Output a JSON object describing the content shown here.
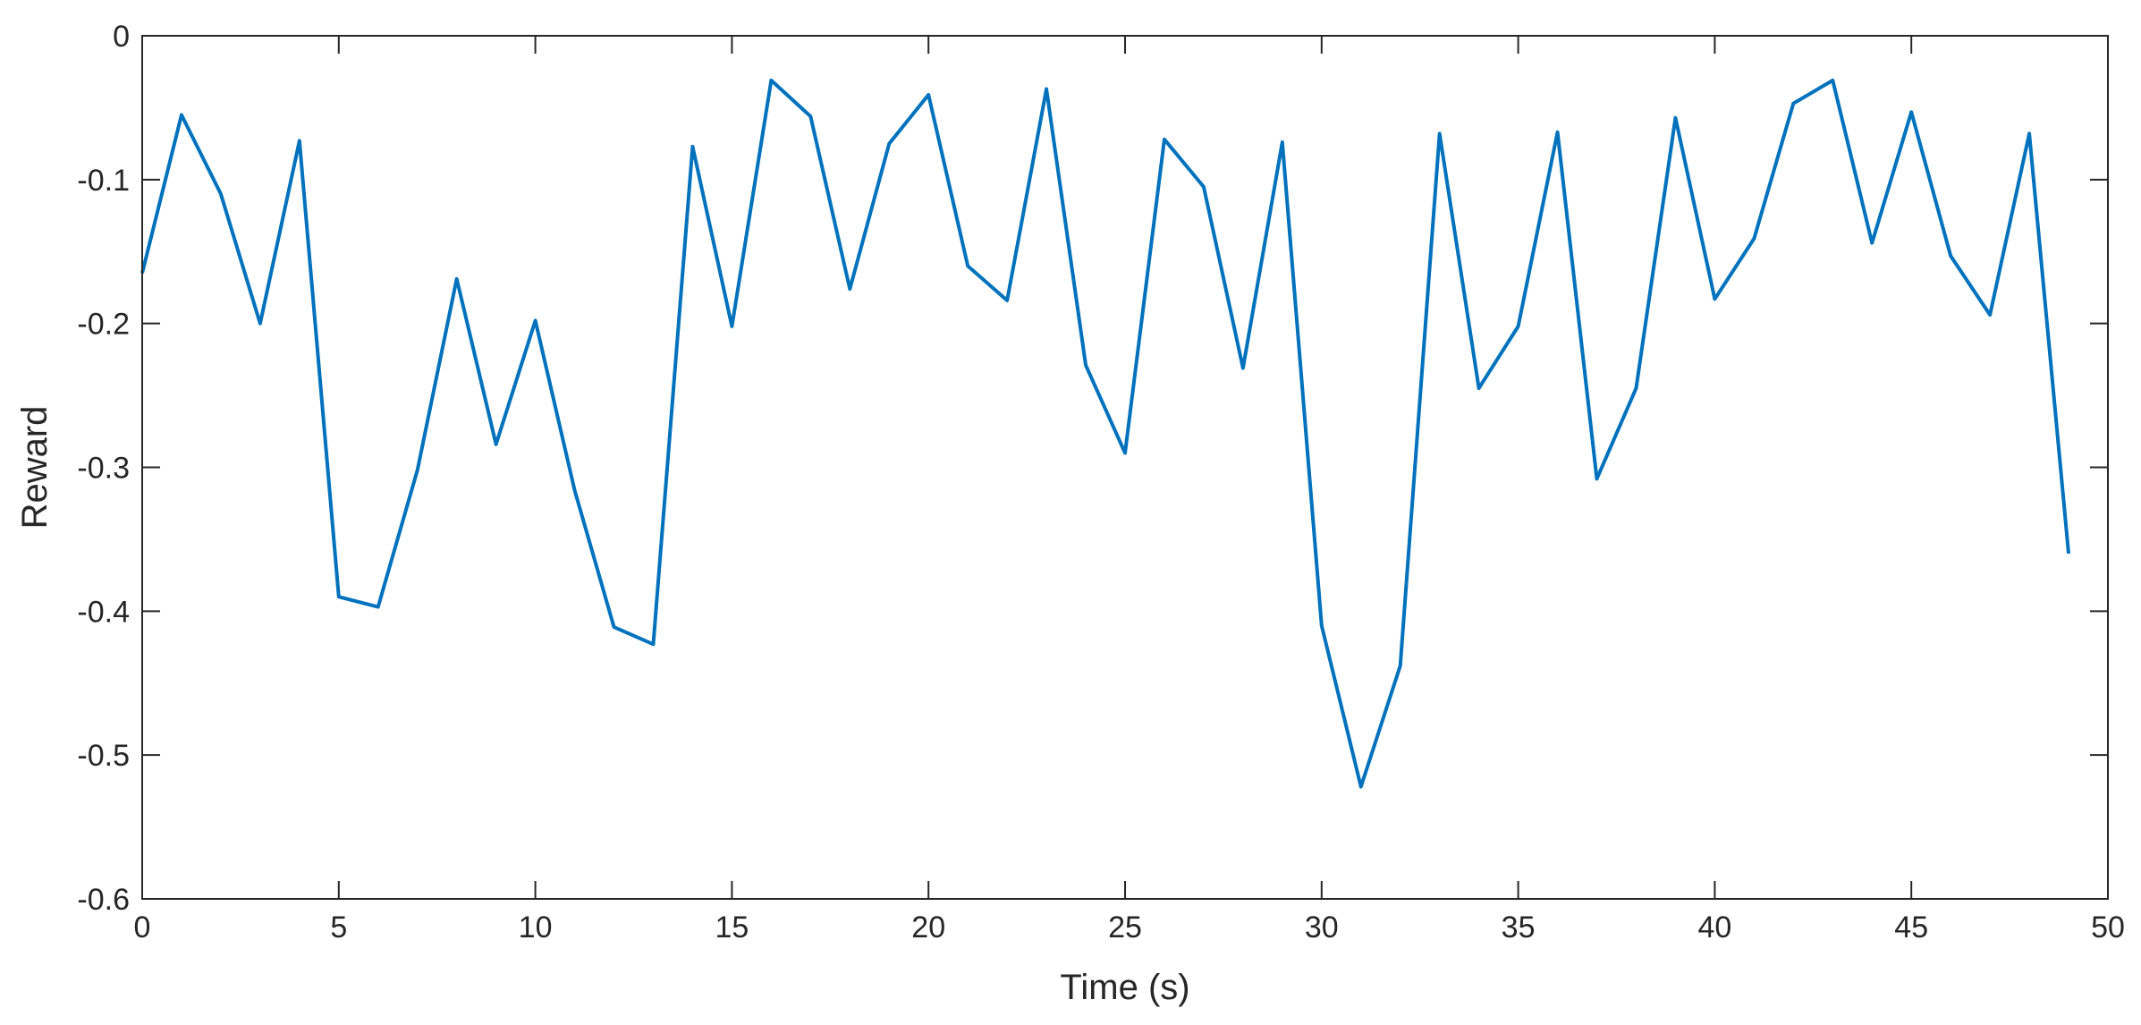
{
  "chart_data": {
    "type": "line",
    "title": "",
    "xlabel": "Time (s)",
    "ylabel": "Reward",
    "xlim": [
      0,
      50
    ],
    "ylim": [
      -0.6,
      0
    ],
    "xticks": [
      0,
      5,
      10,
      15,
      20,
      25,
      30,
      35,
      40,
      45,
      50
    ],
    "yticks": [
      0,
      -0.1,
      -0.2,
      -0.3,
      -0.4,
      -0.5,
      -0.6
    ],
    "xtick_labels": [
      "0",
      "5",
      "10",
      "15",
      "20",
      "25",
      "30",
      "35",
      "40",
      "45",
      "50"
    ],
    "ytick_labels": [
      "0",
      "-0.1",
      "-0.2",
      "-0.3",
      "-0.4",
      "-0.5",
      "-0.6"
    ],
    "grid": false,
    "line_color": "#0072BD",
    "series": [
      {
        "x": [
          0,
          1,
          2,
          3,
          4,
          5,
          6,
          7,
          8,
          9,
          10,
          11,
          12,
          13,
          14,
          15,
          16,
          17,
          18,
          19,
          20,
          21,
          22,
          23,
          24,
          25,
          26,
          27,
          28,
          29,
          30,
          31,
          32,
          33,
          34,
          35,
          36,
          37,
          38,
          39,
          40,
          41,
          42,
          43,
          44,
          45,
          46,
          47,
          48,
          49
        ],
        "values": [
          -0.165,
          -0.055,
          -0.11,
          -0.2,
          -0.073,
          -0.39,
          -0.397,
          -0.302,
          -0.169,
          -0.284,
          -0.198,
          -0.316,
          -0.411,
          -0.423,
          -0.077,
          -0.202,
          -0.031,
          -0.056,
          -0.176,
          -0.075,
          -0.041,
          -0.16,
          -0.184,
          -0.037,
          -0.229,
          -0.29,
          -0.072,
          -0.105,
          -0.231,
          -0.074,
          -0.41,
          -0.522,
          -0.438,
          -0.068,
          -0.245,
          -0.202,
          -0.067,
          -0.308,
          -0.245,
          -0.057,
          -0.183,
          -0.141,
          -0.047,
          -0.031,
          -0.144,
          -0.053,
          -0.153,
          -0.194,
          -0.068,
          -0.36
        ]
      }
    ]
  }
}
